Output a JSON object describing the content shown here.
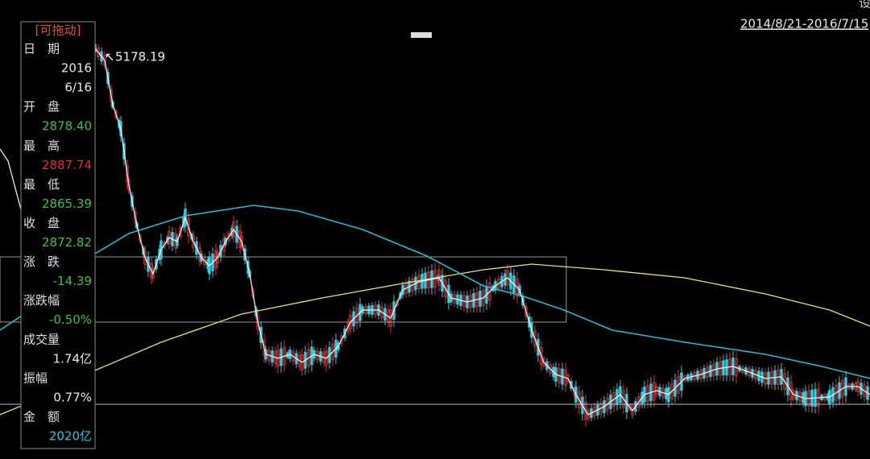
{
  "drag_label": "[可拖动]",
  "info_rows": [
    {
      "label": "日　期"
    },
    {
      "value": "2016",
      "color": "#e8e8e8"
    },
    {
      "value": "6/16",
      "color": "#e8e8e8"
    },
    {
      "label": "开　盘"
    },
    {
      "value": "2878.40",
      "color": "#3ec24a"
    },
    {
      "label": "最　高"
    },
    {
      "value": "2887.74",
      "color": "#e0323a"
    },
    {
      "label": "最　低"
    },
    {
      "value": "2865.39",
      "color": "#3ec24a"
    },
    {
      "label": "收　盘"
    },
    {
      "value": "2872.82",
      "color": "#3ec24a"
    },
    {
      "label": "涨　跌"
    },
    {
      "value": "-14.39",
      "color": "#3ec24a"
    },
    {
      "label": "涨跌幅"
    },
    {
      "value": "-0.50%",
      "color": "#3ec24a"
    },
    {
      "label": "成交量"
    },
    {
      "value": "1.74亿",
      "color": "#e8e8e8"
    },
    {
      "label": "振幅"
    },
    {
      "value": "0.77%",
      "color": "#e8e8e8"
    },
    {
      "label": "金　额"
    },
    {
      "value": "2020亿",
      "color": "#2fc8d8"
    }
  ],
  "peak_annotation": "5178.19",
  "date_range": "2014/8/21-2016/7/15",
  "corner_text": "设"
}
